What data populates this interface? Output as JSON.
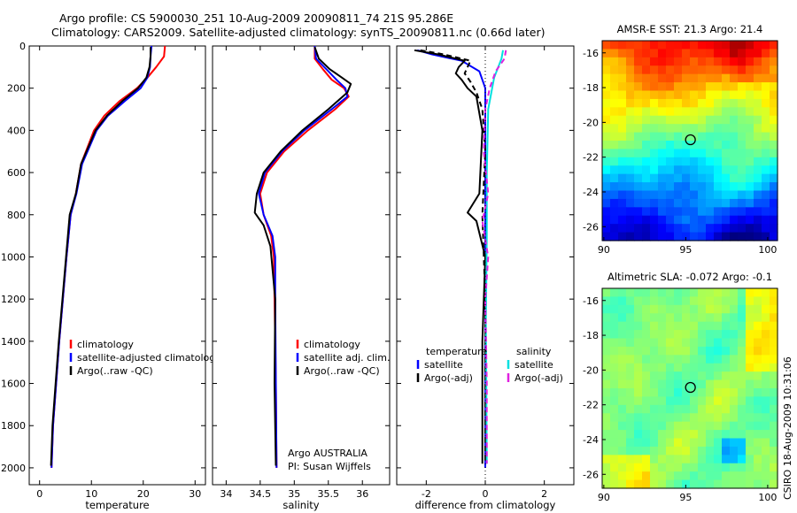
{
  "header": {
    "line1": "Argo profile: CS 5900030_251 10-Aug-2009 20090811_74 21S 95.286E",
    "line2": "Climatology: CARS2009. Satellite-adjusted climatology: synTS_20090811.nc (0.66d later)"
  },
  "side_label": "CSIRO 18-Aug-2009 10:31:06",
  "colors": {
    "red": "#ff0000",
    "blue": "#0000ff",
    "black": "#000000",
    "cyan": "#00e0e0",
    "magenta": "#e020e0"
  },
  "chart_data": [
    {
      "id": "temperature",
      "type": "line",
      "xlabel": "temperature",
      "xlim": [
        -2,
        32
      ],
      "ylim": [
        0,
        2080
      ],
      "xticks": [
        "0",
        "10",
        "20",
        "30"
      ],
      "xtick_values": [
        0,
        10,
        20,
        30
      ],
      "yticks": [
        "0",
        "200",
        "400",
        "600",
        "800",
        "1000",
        "1200",
        "1400",
        "1600",
        "1800",
        "2000"
      ],
      "ytick_values": [
        0,
        200,
        400,
        600,
        800,
        1000,
        1200,
        1400,
        1600,
        1800,
        2000
      ],
      "legend": [
        "climatology",
        "satellite-adjusted climatology",
        "Argo(..raw -QC)"
      ],
      "series": [
        {
          "name": "climatology",
          "color": "red",
          "x": [
            24.2,
            24.0,
            22.5,
            20.8,
            18.8,
            15.5,
            12.5,
            10.5,
            8.0,
            7.0,
            6.0,
            5.2,
            4.5,
            3.8,
            3.2,
            2.6,
            2.3
          ],
          "y": [
            0,
            50,
            100,
            150,
            200,
            260,
            330,
            400,
            560,
            700,
            800,
            1000,
            1200,
            1400,
            1600,
            1800,
            2000
          ]
        },
        {
          "name": "satellite-adjusted climatology",
          "color": "blue",
          "x": [
            21.6,
            21.4,
            21.3,
            20.8,
            19.5,
            16.5,
            13.2,
            11.0,
            8.2,
            7.1,
            6.0,
            5.2,
            4.5,
            3.8,
            3.2,
            2.6,
            2.3
          ],
          "y": [
            0,
            50,
            100,
            150,
            200,
            260,
            330,
            400,
            560,
            700,
            800,
            1000,
            1200,
            1400,
            1600,
            1800,
            2000
          ]
        },
        {
          "name": "Argo(..raw -QC)",
          "color": "black",
          "x": [
            21.4,
            21.4,
            21.2,
            20.6,
            19.0,
            16.0,
            13.0,
            10.8,
            8.0,
            7.0,
            5.8,
            5.1,
            4.4,
            3.7,
            3.1,
            2.5,
            2.2
          ],
          "y": [
            5,
            50,
            100,
            150,
            200,
            260,
            330,
            400,
            560,
            700,
            800,
            1000,
            1200,
            1400,
            1600,
            1800,
            1990
          ]
        }
      ]
    },
    {
      "id": "salinity",
      "type": "line",
      "xlabel": "salinity",
      "xlim": [
        33.8,
        36.4
      ],
      "ylim": [
        0,
        2080
      ],
      "xticks": [
        "34",
        "34.5",
        "35",
        "35.5",
        "36"
      ],
      "xtick_values": [
        34,
        34.5,
        35,
        35.5,
        36
      ],
      "legend": [
        "climatology",
        "satellite adj. clim.",
        "Argo(..raw -QC)"
      ],
      "annotations": [
        "Argo AUSTRALIA",
        "PI: Susan Wijffels"
      ],
      "series": [
        {
          "name": "climatology",
          "color": "red",
          "x": [
            35.3,
            35.3,
            35.42,
            35.55,
            35.73,
            35.8,
            35.6,
            35.2,
            34.85,
            34.6,
            34.5,
            34.55,
            34.66,
            34.7,
            34.71,
            34.73,
            34.74
          ],
          "y": [
            0,
            60,
            110,
            160,
            200,
            240,
            300,
            400,
            500,
            600,
            700,
            800,
            900,
            1000,
            1200,
            1600,
            2000
          ]
        },
        {
          "name": "satellite adj. clim.",
          "color": "blue",
          "x": [
            35.3,
            35.32,
            35.47,
            35.62,
            35.75,
            35.78,
            35.55,
            35.15,
            34.82,
            34.57,
            34.48,
            34.55,
            34.68,
            34.72,
            34.72,
            34.73,
            34.74
          ],
          "y": [
            0,
            60,
            110,
            160,
            200,
            240,
            300,
            400,
            500,
            600,
            700,
            800,
            900,
            1000,
            1200,
            1600,
            2000
          ]
        },
        {
          "name": "Argo(..raw -QC)",
          "color": "black",
          "x": [
            35.3,
            35.36,
            35.52,
            35.7,
            35.83,
            35.78,
            35.5,
            35.12,
            34.8,
            34.55,
            34.45,
            34.42,
            34.55,
            34.65,
            34.72,
            34.71,
            34.73
          ],
          "y": [
            5,
            60,
            110,
            150,
            180,
            220,
            300,
            400,
            500,
            600,
            700,
            790,
            850,
            950,
            1200,
            1600,
            1990
          ]
        }
      ]
    },
    {
      "id": "difference",
      "type": "line",
      "xlabel": "difference from climatology",
      "xlim": [
        -3,
        3
      ],
      "ylim": [
        0,
        2080
      ],
      "xticks": [
        "-2",
        "0",
        "2"
      ],
      "xtick_values": [
        -2,
        0,
        2
      ],
      "legend": [
        "temperature",
        "satellite",
        "Argo(-adj)",
        "salinity",
        "satellite",
        "Argo(-adj)"
      ],
      "series": [
        {
          "name": "temperature satellite",
          "color": "blue",
          "dash": false,
          "x": [
            -2.3,
            -1.8,
            -0.8,
            -0.2,
            0.0,
            0.0,
            0.0,
            0.0
          ],
          "y": [
            20,
            40,
            70,
            120,
            200,
            600,
            1200,
            2000
          ]
        },
        {
          "name": "temperature Argo(-adj)",
          "color": "black",
          "dash": false,
          "x": [
            -2.4,
            -1.6,
            -0.7,
            -0.9,
            -1.0,
            -0.8,
            -0.6,
            -0.3,
            -0.1,
            -0.2,
            -0.6,
            -0.3,
            0.0,
            -0.1,
            -0.1,
            -0.1
          ],
          "y": [
            20,
            40,
            70,
            100,
            130,
            160,
            200,
            240,
            400,
            700,
            790,
            830,
            1000,
            1400,
            1800,
            1980
          ]
        },
        {
          "name": "temperature Argo(-adj) dashed",
          "color": "black",
          "dash": true,
          "x": [
            -2.2,
            -1.4,
            -0.5,
            -0.6,
            -0.7,
            -0.5,
            -0.3,
            -0.1,
            0.0,
            -0.1,
            0.0,
            0.0
          ],
          "y": [
            20,
            40,
            70,
            100,
            130,
            170,
            220,
            300,
            500,
            800,
            1200,
            1980
          ]
        },
        {
          "name": "salinity satellite",
          "color": "cyan",
          "dash": false,
          "x": [
            0.6,
            0.55,
            0.3,
            0.1,
            0.05,
            0.05,
            0.02,
            0.05
          ],
          "y": [
            20,
            60,
            150,
            300,
            600,
            900,
            1300,
            1980
          ]
        },
        {
          "name": "salinity Argo(-adj)",
          "color": "magenta",
          "dash": true,
          "x": [
            0.7,
            0.65,
            0.35,
            0.15,
            0.0,
            -0.05,
            0.1,
            -0.05,
            -0.1,
            0.1,
            0.0,
            0.05,
            0.05
          ],
          "y": [
            20,
            60,
            120,
            200,
            300,
            500,
            700,
            800,
            830,
            1000,
            1200,
            1600,
            1980
          ]
        }
      ]
    },
    {
      "id": "sst_map",
      "type": "heatmap",
      "title": "AMSR-E SST: 21.3 Argo: 21.4",
      "xlim": [
        89.9,
        100.6
      ],
      "ylim": [
        -26.8,
        -15.3
      ],
      "xticks": [
        "90",
        "95",
        "100"
      ],
      "xtick_values": [
        90,
        95,
        100
      ],
      "yticks": [
        "-16",
        "-18",
        "-20",
        "-22",
        "-24",
        "-26"
      ],
      "ytick_values": [
        -16,
        -18,
        -20,
        -22,
        -24,
        -26
      ],
      "marker": {
        "lon": 95.286,
        "lat": -21
      },
      "colormap": "jet"
    },
    {
      "id": "sla_map",
      "type": "heatmap",
      "title": "Altimetric SLA: -0.072 Argo: -0.1",
      "xlim": [
        89.9,
        100.6
      ],
      "ylim": [
        -26.8,
        -15.3
      ],
      "xticks": [
        "90",
        "95",
        "100"
      ],
      "xtick_values": [
        90,
        95,
        100
      ],
      "yticks": [
        "-16",
        "-18",
        "-20",
        "-22",
        "-24",
        "-26"
      ],
      "ytick_values": [
        -16,
        -18,
        -20,
        -22,
        -24,
        -26
      ],
      "marker": {
        "lon": 95.286,
        "lat": -21
      },
      "colormap": "jet"
    }
  ]
}
